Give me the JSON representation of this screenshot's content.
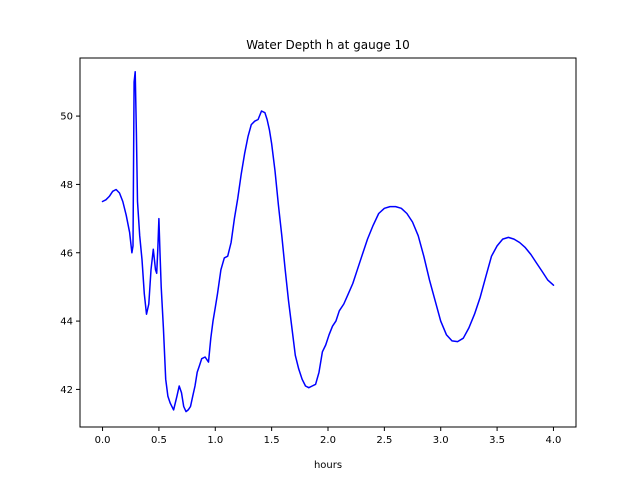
{
  "chart_data": {
    "type": "line",
    "title": "Water Depth h at gauge 10",
    "xlabel": "hours",
    "ylabel": "",
    "xlim": [
      -0.2,
      4.2
    ],
    "ylim": [
      40.9,
      51.7
    ],
    "xticks": [
      0.0,
      0.5,
      1.0,
      1.5,
      2.0,
      2.5,
      3.0,
      3.5,
      4.0
    ],
    "xtick_labels": [
      "0.0",
      "0.5",
      "1.0",
      "1.5",
      "2.0",
      "2.5",
      "3.0",
      "3.5",
      "4.0"
    ],
    "yticks": [
      42,
      44,
      46,
      48,
      50
    ],
    "ytick_labels": [
      "42",
      "44",
      "46",
      "48",
      "50"
    ],
    "grid": false,
    "series": [
      {
        "color": "#0000ff",
        "x": [
          0.0,
          0.03,
          0.06,
          0.09,
          0.12,
          0.15,
          0.18,
          0.21,
          0.24,
          0.26,
          0.27,
          0.28,
          0.29,
          0.3,
          0.31,
          0.33,
          0.35,
          0.37,
          0.39,
          0.41,
          0.43,
          0.45,
          0.47,
          0.48,
          0.49,
          0.5,
          0.51,
          0.52,
          0.54,
          0.56,
          0.58,
          0.6,
          0.63,
          0.66,
          0.68,
          0.7,
          0.72,
          0.74,
          0.76,
          0.78,
          0.8,
          0.82,
          0.84,
          0.86,
          0.88,
          0.91,
          0.94,
          0.96,
          0.98,
          1.0,
          1.02,
          1.05,
          1.08,
          1.11,
          1.14,
          1.17,
          1.2,
          1.23,
          1.26,
          1.29,
          1.32,
          1.35,
          1.38,
          1.41,
          1.44,
          1.46,
          1.48,
          1.5,
          1.53,
          1.56,
          1.59,
          1.62,
          1.65,
          1.68,
          1.71,
          1.74,
          1.77,
          1.8,
          1.83,
          1.86,
          1.89,
          1.92,
          1.95,
          1.98,
          2.01,
          2.04,
          2.07,
          2.1,
          2.14,
          2.18,
          2.22,
          2.26,
          2.3,
          2.35,
          2.4,
          2.45,
          2.5,
          2.55,
          2.6,
          2.65,
          2.7,
          2.75,
          2.8,
          2.85,
          2.9,
          2.95,
          3.0,
          3.05,
          3.1,
          3.15,
          3.2,
          3.25,
          3.3,
          3.35,
          3.4,
          3.45,
          3.5,
          3.55,
          3.6,
          3.65,
          3.7,
          3.75,
          3.8,
          3.85,
          3.9,
          3.95,
          4.0
        ],
        "y": [
          47.5,
          47.55,
          47.65,
          47.8,
          47.85,
          47.75,
          47.5,
          47.1,
          46.6,
          46.0,
          46.2,
          51.0,
          51.3,
          49.5,
          47.5,
          46.5,
          45.8,
          44.8,
          44.2,
          44.5,
          45.5,
          46.1,
          45.5,
          45.4,
          46.1,
          47.0,
          46.0,
          45.0,
          43.8,
          42.3,
          41.8,
          41.6,
          41.4,
          41.8,
          42.1,
          41.9,
          41.5,
          41.35,
          41.4,
          41.5,
          41.8,
          42.1,
          42.5,
          42.7,
          42.9,
          42.95,
          42.8,
          43.5,
          44.0,
          44.4,
          44.8,
          45.5,
          45.85,
          45.9,
          46.3,
          47.0,
          47.6,
          48.3,
          48.9,
          49.4,
          49.75,
          49.85,
          49.9,
          50.15,
          50.1,
          49.9,
          49.6,
          49.2,
          48.4,
          47.4,
          46.5,
          45.5,
          44.6,
          43.8,
          43.0,
          42.6,
          42.3,
          42.1,
          42.05,
          42.1,
          42.15,
          42.5,
          43.1,
          43.3,
          43.6,
          43.85,
          44.0,
          44.3,
          44.5,
          44.8,
          45.1,
          45.5,
          45.9,
          46.4,
          46.8,
          47.15,
          47.3,
          47.35,
          47.35,
          47.3,
          47.15,
          46.9,
          46.5,
          45.9,
          45.2,
          44.6,
          44.0,
          43.6,
          43.42,
          43.4,
          43.5,
          43.8,
          44.2,
          44.7,
          45.3,
          45.9,
          46.2,
          46.4,
          46.45,
          46.4,
          46.3,
          46.15,
          45.95,
          45.7,
          45.45,
          45.2,
          45.05
        ]
      }
    ]
  }
}
